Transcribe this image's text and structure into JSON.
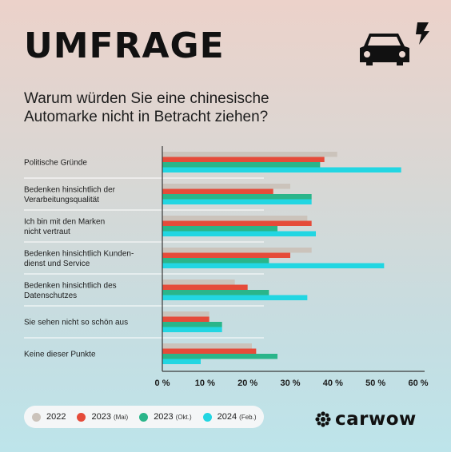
{
  "header": {
    "title": "UMFRAGE",
    "subtitle_line1": "Warum würden Sie eine chinesische",
    "subtitle_line2": "Automarke nicht in Betracht ziehen?"
  },
  "icons": {
    "car": "car-icon",
    "lightning": "lightning-icon",
    "brand_logo": "carwow-logo-icon"
  },
  "brand": {
    "name": "carwow"
  },
  "legend": [
    {
      "year": "2022",
      "note": ""
    },
    {
      "year": "2023",
      "note": "(Mai)"
    },
    {
      "year": "2023",
      "note": "(Okt.)"
    },
    {
      "year": "2024",
      "note": "(Feb.)"
    }
  ],
  "colors": {
    "series_2022": "#cbc3bb",
    "series_2023_mai": "#e54b3a",
    "series_2023_okt": "#2ab58a",
    "series_2024_feb": "#22d6e2",
    "axis": "#3a3a3a",
    "separator": "#ffffff"
  },
  "chart_data": {
    "type": "bar",
    "orientation": "horizontal",
    "categories": [
      [
        "Politische Gründe"
      ],
      [
        "Bedenken hinsichtlich der",
        "Verarbeitungsqualität"
      ],
      [
        "Ich bin mit den Marken",
        "nicht vertraut"
      ],
      [
        "Bedenken hinsichtlich Kunden-",
        "dienst und Service"
      ],
      [
        "Bedenken hinsichtlich des",
        "Datenschutzes"
      ],
      [
        "Sie sehen nicht so schön aus"
      ],
      [
        "Keine dieser Punkte"
      ]
    ],
    "series": [
      {
        "name": "2022 ",
        "values": [
          41,
          30,
          34,
          35,
          17,
          11,
          21
        ]
      },
      {
        "name": "2023 (Mai)",
        "values": [
          38,
          26,
          35,
          30,
          20,
          11,
          22
        ]
      },
      {
        "name": "2023 (Okt.)",
        "values": [
          37,
          35,
          27,
          25,
          25,
          14,
          27
        ]
      },
      {
        "name": "2024 (Feb.)",
        "values": [
          56,
          35,
          36,
          52,
          34,
          14,
          9
        ]
      }
    ],
    "xlim": [
      0,
      60
    ],
    "xticks": [
      "0 %",
      "10 %",
      "20 %",
      "30 %",
      "40 %",
      "50 %",
      "60 %"
    ],
    "xtick_values": [
      0,
      10,
      20,
      30,
      40,
      50,
      60
    ],
    "grid": false,
    "legend_position": "bottom-left"
  }
}
